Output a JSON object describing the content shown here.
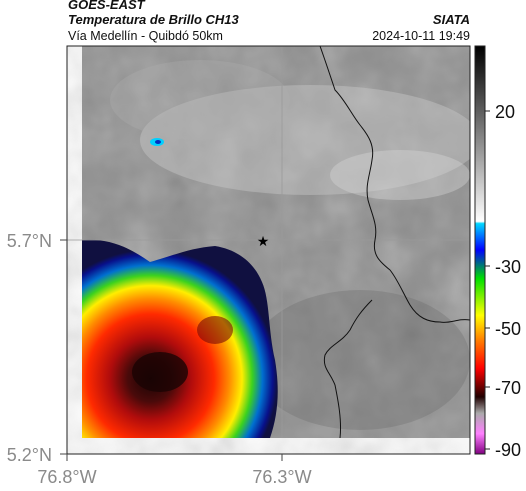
{
  "header": {
    "satellite": "GOES-EAST",
    "product": "Temperatura de Brillo CH13",
    "region": "Vía Medellín - Quibdó 50km",
    "brand": "SIATA",
    "timestamp": "2024-10-11 19:49"
  },
  "axes": {
    "lat_ticks": [
      "5.7°N",
      "5.2°N"
    ],
    "lon_ticks": [
      "76.8°W",
      "76.3°W"
    ]
  },
  "colorbar": {
    "ticks": [
      "20",
      "-30",
      "-50",
      "-70",
      "-90"
    ]
  },
  "marker": {
    "symbol": "★"
  }
}
